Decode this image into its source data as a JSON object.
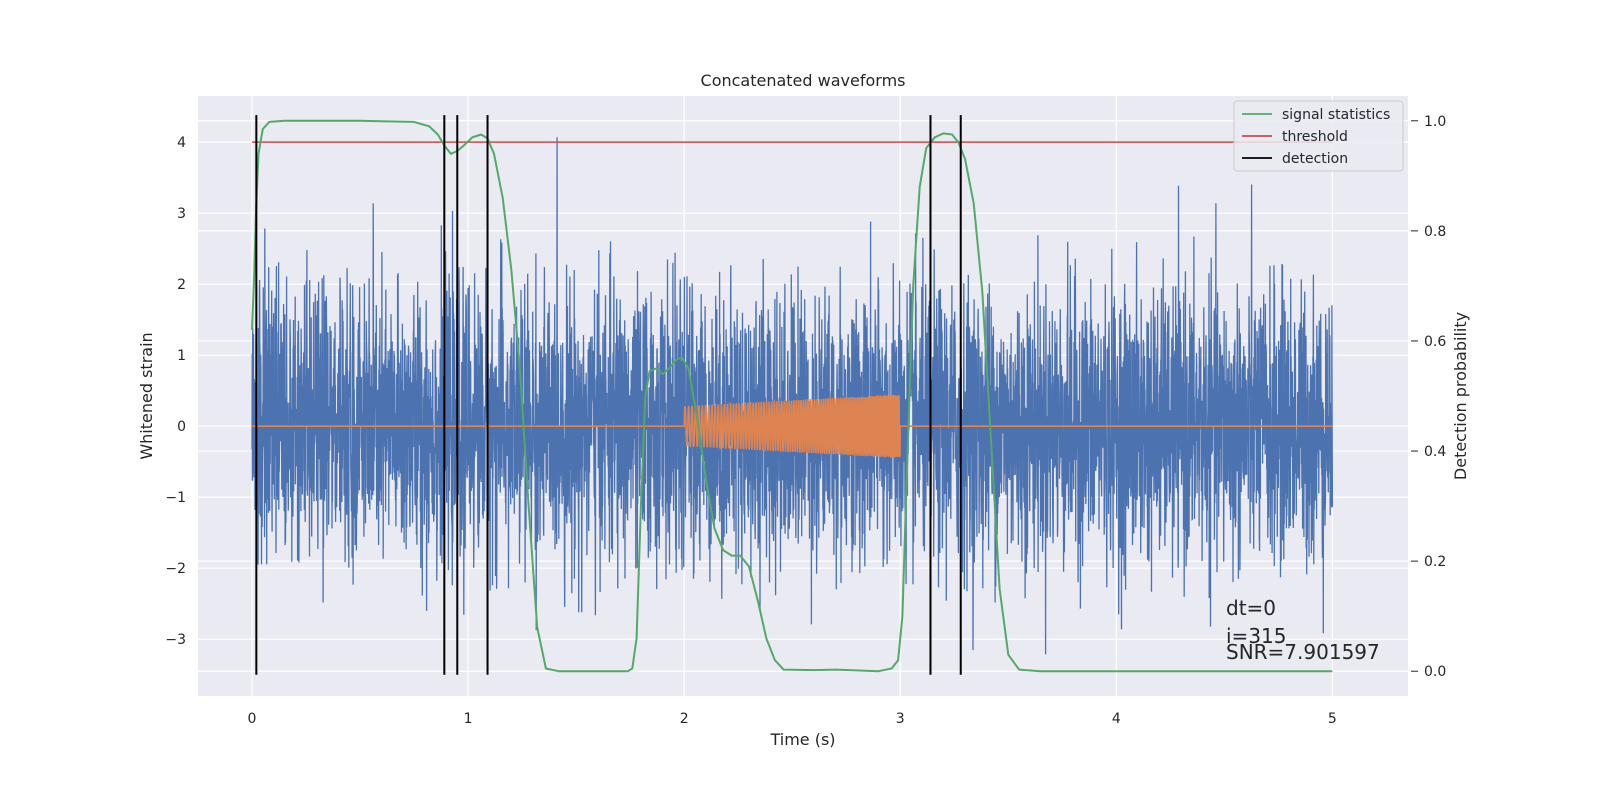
{
  "chart_data": {
    "type": "line",
    "title": "Concatenated waveforms",
    "xlabel": "Time (s)",
    "ylabel": "Whitened strain",
    "ylabel_right": "Detection probability",
    "xlim": [
      -0.25,
      5.35
    ],
    "ylim": [
      -3.8,
      4.65
    ],
    "ylim_right": [
      -0.045,
      1.045
    ],
    "x_ticks": [
      "0",
      "1",
      "2",
      "3",
      "4",
      "5"
    ],
    "y_ticks": [
      "−3",
      "−2",
      "−1",
      "0",
      "1",
      "2",
      "3",
      "4"
    ],
    "y_ticks_right": [
      "0.0",
      "0.2",
      "0.4",
      "0.6",
      "0.8",
      "1.0"
    ],
    "grid": true,
    "legend_position": "top-right",
    "colors": {
      "strain": "#4c72b0",
      "injected": "#dd8452",
      "statistics": "#55a868",
      "threshold": "#c44e52",
      "detection": "#000000",
      "background": "#eaeaf2",
      "grid": "#ffffff"
    },
    "series": [
      {
        "name": "",
        "axis": "left",
        "kind": "noise",
        "x_range": [
          0,
          5
        ],
        "approx_std": 0.95,
        "approx_min": -3.45,
        "approx_max": 4.4
      },
      {
        "name": "",
        "axis": "left",
        "kind": "chirp",
        "x_range": [
          2.0,
          3.0
        ],
        "amplitude_start": 0.28,
        "amplitude_end": 0.45,
        "zero_elsewhere": [
          0,
          5
        ]
      },
      {
        "name": "signal statistics",
        "axis": "right",
        "points": [
          [
            0.0,
            0.62
          ],
          [
            0.01,
            0.72
          ],
          [
            0.02,
            0.85
          ],
          [
            0.03,
            0.94
          ],
          [
            0.05,
            0.985
          ],
          [
            0.08,
            0.998
          ],
          [
            0.15,
            1.0
          ],
          [
            0.5,
            1.0
          ],
          [
            0.75,
            0.998
          ],
          [
            0.82,
            0.99
          ],
          [
            0.86,
            0.975
          ],
          [
            0.89,
            0.955
          ],
          [
            0.92,
            0.94
          ],
          [
            0.95,
            0.945
          ],
          [
            0.98,
            0.955
          ],
          [
            1.02,
            0.97
          ],
          [
            1.06,
            0.975
          ],
          [
            1.09,
            0.968
          ],
          [
            1.12,
            0.94
          ],
          [
            1.16,
            0.86
          ],
          [
            1.2,
            0.73
          ],
          [
            1.24,
            0.55
          ],
          [
            1.28,
            0.3
          ],
          [
            1.32,
            0.08
          ],
          [
            1.36,
            0.005
          ],
          [
            1.42,
            0.0
          ],
          [
            1.74,
            0.0
          ],
          [
            1.76,
            0.005
          ],
          [
            1.78,
            0.06
          ],
          [
            1.8,
            0.3
          ],
          [
            1.82,
            0.5
          ],
          [
            1.84,
            0.545
          ],
          [
            1.87,
            0.55
          ],
          [
            1.9,
            0.54
          ],
          [
            1.93,
            0.55
          ],
          [
            1.96,
            0.565
          ],
          [
            1.99,
            0.57
          ],
          [
            2.02,
            0.55
          ],
          [
            2.06,
            0.46
          ],
          [
            2.1,
            0.35
          ],
          [
            2.14,
            0.26
          ],
          [
            2.18,
            0.22
          ],
          [
            2.22,
            0.21
          ],
          [
            2.26,
            0.21
          ],
          [
            2.3,
            0.19
          ],
          [
            2.34,
            0.13
          ],
          [
            2.38,
            0.06
          ],
          [
            2.42,
            0.02
          ],
          [
            2.46,
            0.003
          ],
          [
            2.6,
            0.002
          ],
          [
            2.7,
            0.003
          ],
          [
            2.9,
            0.0
          ],
          [
            2.96,
            0.005
          ],
          [
            2.99,
            0.02
          ],
          [
            3.01,
            0.1
          ],
          [
            3.03,
            0.35
          ],
          [
            3.06,
            0.7
          ],
          [
            3.09,
            0.88
          ],
          [
            3.12,
            0.95
          ],
          [
            3.16,
            0.97
          ],
          [
            3.2,
            0.977
          ],
          [
            3.24,
            0.975
          ],
          [
            3.27,
            0.96
          ],
          [
            3.3,
            0.93
          ],
          [
            3.34,
            0.85
          ],
          [
            3.38,
            0.69
          ],
          [
            3.42,
            0.42
          ],
          [
            3.46,
            0.15
          ],
          [
            3.5,
            0.03
          ],
          [
            3.55,
            0.003
          ],
          [
            3.65,
            0.0
          ],
          [
            5.0,
            0.0
          ]
        ]
      },
      {
        "name": "threshold",
        "axis": "left",
        "points": [
          [
            0,
            4.0
          ],
          [
            5,
            4.0
          ]
        ]
      },
      {
        "name": "detection",
        "axis": "left",
        "vlines": [
          0.02,
          0.89,
          0.95,
          1.09,
          3.14,
          3.28
        ],
        "ymin": -3.5,
        "ymax": 4.38
      }
    ],
    "annotations": [
      "dt=0",
      "i=315",
      "SNR=7.901597"
    ]
  }
}
